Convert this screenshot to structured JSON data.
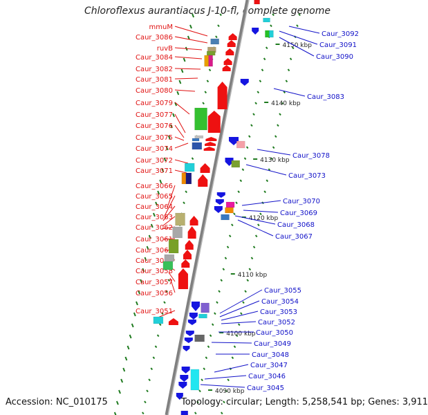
{
  "title": "Chloroflexus aurantiacus J-10-fl, complete genome",
  "footer": {
    "accession": "Accession: NC_010175",
    "topology": "Topology: circular; Length: 5,258,541 bp; Genes: 3,911"
  },
  "colors": {
    "left_label": "#e01010",
    "right_label": "#1010c8",
    "axis": "#808080",
    "tick": "#1e7a1e"
  },
  "kbp_ticks": [
    "4150 kbp",
    "4140 kbp",
    "4130 kbp",
    "4120 kbp",
    "4110 kbp",
    "4100 kbp",
    "4090 kbp"
  ],
  "left_labels": [
    "mmuM",
    "Caur_3086",
    "ruvB",
    "Caur_3084",
    "Caur_3082",
    "Caur_3081",
    "Caur_3080",
    "Caur_3079",
    "Caur_3077",
    "Caur_3076",
    "Caur_3075",
    "Caur_3074",
    "Caur_3072",
    "Caur_3071",
    "Caur_3066",
    "Caur_3065",
    "Caur_3064",
    "Caur_3063",
    "Caur_3062",
    "Caur_3061",
    "Caur_3060",
    "Caur_3059",
    "Caur_3058",
    "Caur_3057",
    "Caur_3056",
    "Caur_3051"
  ],
  "right_labels": [
    "Caur_3092",
    "Caur_3091",
    "Caur_3090",
    "Caur_3083",
    "Caur_3078",
    "Caur_3073",
    "Caur_3070",
    "Caur_3069",
    "Caur_3068",
    "Caur_3067",
    "Caur_3055",
    "Caur_3054",
    "Caur_3053",
    "Caur_3052",
    "Caur_3050",
    "Caur_3049",
    "Caur_3048",
    "Caur_3047",
    "Caur_3046",
    "Caur_3045"
  ]
}
